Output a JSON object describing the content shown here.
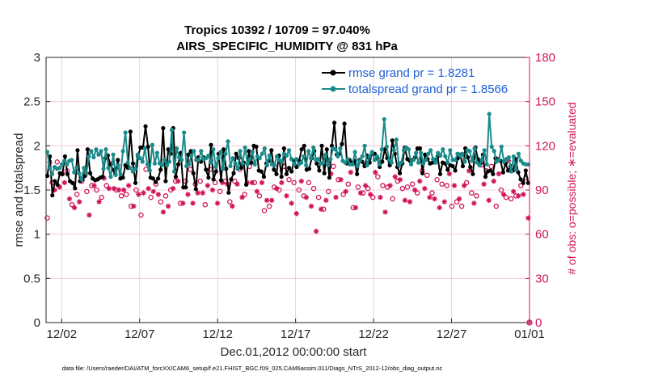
{
  "chart_data": {
    "type": "line",
    "title": "Tropics 10392 / 10709 = 97.040%",
    "subtitle": "AIRS_SPECIFIC_HUMIDITY @ 831 hPa",
    "xlabel": "Dec.01,2012 00:00:00 start",
    "ylabel": "rmse and totalspread",
    "ylabel_right": "# of obs: o=possible; ∗=evaluated",
    "footer": "data file: /Users/raeder/DAI/ATM_forcXX/CAM6_setup/f.e21.FHIST_BGC.f09_025.CAM6assim.011/Diags_NTrS_2012-12/obs_diag_output.nc",
    "xlim": [
      0,
      31
    ],
    "ylim": [
      0,
      3
    ],
    "ylim_right": [
      0,
      180
    ],
    "x_ticks": [
      1,
      6,
      11,
      16,
      21,
      26,
      31
    ],
    "x_tick_labels": [
      "12/02",
      "12/07",
      "12/12",
      "12/17",
      "12/22",
      "12/27",
      "01/01"
    ],
    "y_ticks": [
      0,
      0.5,
      1,
      1.5,
      2,
      2.5,
      3
    ],
    "y_tick_labels": [
      "0",
      "0.5",
      "1",
      "1.5",
      "2",
      "2.5",
      "3"
    ],
    "y_right_ticks": [
      0,
      30,
      60,
      90,
      120,
      150,
      180
    ],
    "y_right_tick_labels": [
      "0",
      "30",
      "60",
      "90",
      "120",
      "150",
      "180"
    ],
    "grid": true,
    "legend_position": "top-right",
    "colors": {
      "rmse": "#000000",
      "spread": "#1a8a8a",
      "obs": "#d0145a",
      "grid": "#f2c4d4",
      "axis": "#262626"
    },
    "series": [
      {
        "name": "rmse grand pr = 1.8281",
        "values": [
          1.66,
          1.88,
          1.44,
          1.6,
          1.56,
          1.69,
          1.68,
          1.88,
          1.68,
          1.6,
          1.58,
          1.52,
          1.95,
          1.6,
          1.62,
          1.66,
          1.96,
          1.69,
          1.63,
          1.61,
          1.62,
          1.64,
          1.65,
          1.86,
          1.89,
          1.79,
          1.73,
          1.68,
          1.84,
          1.63,
          1.64,
          1.78,
          1.75,
          2.16,
          1.8,
          1.58,
          1.88,
          1.98,
          1.98,
          2.22,
          1.99,
          1.64,
          1.63,
          1.59,
          1.63,
          1.73,
          2.2,
          1.6,
          1.96,
          1.91,
          2.2,
          1.65,
          1.79,
          1.92,
          1.53,
          1.53,
          1.9,
          1.94,
          1.69,
          1.51,
          1.87,
          1.82,
          1.87,
          1.73,
          1.64,
          2.01,
          1.62,
          1.71,
          1.91,
          1.61,
          1.96,
          1.74,
          1.47,
          1.62,
          1.69,
          1.91,
          1.86,
          1.75,
          1.81,
          1.56,
          1.94,
          1.81,
          2.0,
          1.99,
          1.72,
          1.71,
          1.65,
          1.8,
          1.83,
          1.95,
          1.73,
          1.68,
          1.89,
          1.65,
          1.97,
          1.68,
          1.75,
          1.71,
          1.83,
          1.76,
          1.83,
          1.96,
          2.0,
          1.73,
          1.74,
          1.86,
          1.94,
          1.8,
          1.72,
          2.0,
          1.69,
          1.96,
          1.64,
          2.0,
          2.26,
          1.9,
          1.91,
          2.02,
          2.25,
          1.8,
          1.84,
          1.81,
          1.83,
          1.68,
          1.84,
          1.82,
          1.77,
          1.89,
          1.81,
          1.92,
          1.91,
          1.86,
          1.76,
          1.82,
          1.96,
          1.86,
          1.78,
          2.06,
          1.91,
          1.76,
          1.69,
          1.8,
          1.98,
          1.85,
          1.83,
          1.84,
          1.87,
          1.97,
          1.97,
          1.69,
          1.9,
          1.85,
          1.8,
          1.81,
          1.84,
          1.88,
          1.68,
          1.81,
          1.8,
          1.73,
          1.78,
          1.77,
          1.72,
          1.86,
          1.9,
          1.77,
          1.97,
          1.87,
          1.76,
          1.68,
          1.98,
          1.85,
          1.8,
          1.9,
          1.65,
          1.71,
          1.72,
          1.68,
          1.86,
          1.85,
          1.83,
          1.7,
          1.8,
          1.72,
          1.77,
          1.72,
          1.85,
          1.7,
          1.62,
          1.58,
          1.72,
          1.58
        ]
      },
      {
        "name": "totalspread grand pr = 1.8566",
        "values": [
          1.93,
          1.75,
          1.68,
          1.76,
          1.74,
          1.75,
          1.79,
          1.83,
          1.79,
          1.83,
          1.84,
          1.7,
          1.75,
          1.69,
          1.62,
          1.75,
          1.69,
          1.88,
          1.94,
          1.87,
          1.96,
          1.9,
          1.94,
          1.74,
          1.96,
          1.75,
          1.65,
          1.9,
          1.67,
          1.78,
          1.68,
          1.94,
          2.15,
          1.81,
          1.75,
          1.71,
          1.74,
          1.9,
          1.86,
          1.82,
          1.97,
          1.79,
          1.72,
          2.01,
          1.8,
          1.92,
          1.8,
          1.78,
          1.84,
          1.78,
          1.82,
          2.18,
          1.71,
          1.97,
          1.87,
          1.84,
          2.15,
          1.77,
          1.79,
          1.89,
          1.94,
          1.84,
          1.84,
          1.94,
          1.85,
          1.86,
          1.89,
          1.81,
          1.96,
          1.76,
          1.86,
          1.93,
          1.74,
          1.91,
          2.05,
          1.77,
          1.86,
          1.8,
          1.74,
          1.94,
          1.8,
          1.98,
          1.79,
          1.85,
          1.93,
          1.79,
          1.88,
          1.86,
          1.91,
          1.97,
          1.78,
          1.89,
          1.79,
          1.78,
          1.88,
          1.84,
          1.82,
          1.91,
          1.89,
          1.95,
          1.85,
          1.79,
          1.85,
          1.79,
          1.81,
          1.88,
          1.78,
          1.94,
          1.86,
          1.98,
          1.84,
          1.85,
          1.8,
          1.81,
          1.9,
          1.78,
          1.85,
          1.97,
          1.96,
          1.88,
          1.97,
          1.83,
          1.81,
          1.85,
          1.79,
          1.79,
          1.93,
          1.77,
          1.83,
          1.88,
          2.0,
          1.78,
          1.88,
          1.93,
          1.84,
          1.88,
          1.79,
          1.96,
          2.3,
          1.99,
          1.84,
          1.81,
          1.95,
          2.07,
          1.78,
          1.81,
          1.95,
          1.98,
          1.96,
          1.79,
          1.84,
          1.92,
          1.81,
          1.92,
          1.8,
          1.84,
          1.91,
          1.95,
          1.85,
          1.81,
          1.92,
          1.89,
          1.96,
          1.88,
          1.81,
          1.95,
          1.84,
          1.84,
          1.91,
          1.89,
          1.91,
          1.82,
          1.95,
          1.94,
          1.83,
          1.97,
          1.81,
          1.78,
          1.84,
          1.95,
          1.79,
          2.36,
          1.99,
          1.94,
          1.82,
          1.84,
          1.99,
          1.82,
          1.85,
          1.87,
          1.71,
          1.88,
          1.73,
          1.91,
          1.83,
          1.8,
          1.79,
          1.79
        ]
      }
    ],
    "obs_possible": [
      71,
      110,
      95,
      91,
      109,
      93,
      101,
      96,
      103,
      85,
      80,
      79,
      87,
      83,
      96,
      102,
      89,
      74,
      93,
      94,
      90,
      83,
      85,
      99,
      93,
      92,
      108,
      92,
      90,
      91,
      86,
      91,
      87,
      94,
      79,
      80,
      90,
      88,
      73,
      89,
      104,
      92,
      85,
      90,
      94,
      88,
      82,
      76,
      86,
      80,
      90,
      92,
      96,
      97,
      81,
      82,
      96,
      88,
      104,
      82,
      94,
      89,
      96,
      89,
      80,
      94,
      104,
      91,
      95,
      82,
      89,
      96,
      96,
      95,
      82,
      80,
      96,
      95,
      104,
      86,
      87,
      96,
      106,
      96,
      95,
      90,
      86,
      96,
      76,
      84,
      79,
      84,
      92,
      92,
      90,
      96,
      106,
      87,
      97,
      82,
      95,
      75,
      90,
      97,
      86,
      86,
      95,
      80,
      91,
      66,
      85,
      78,
      77,
      84,
      89,
      102,
      106,
      86,
      97,
      98,
      87,
      90,
      94,
      103,
      78,
      79,
      92,
      89,
      88,
      94,
      91,
      88,
      85,
      103,
      99,
      86,
      93,
      76,
      92,
      94,
      84,
      100,
      96,
      98,
      91,
      84,
      92,
      83,
      94,
      91,
      88,
      97,
      103,
      92,
      100,
      86,
      88,
      85,
      97,
      79,
      94,
      83,
      93,
      102,
      79,
      94,
      82,
      85,
      79,
      94,
      95,
      104,
      88,
      82,
      86,
      110,
      107,
      95,
      103,
      84,
      106,
      97,
      79,
      102,
      90,
      88,
      85,
      111,
      84,
      90,
      86,
      87,
      93,
      88,
      98,
      72
    ],
    "obs_evaluated": [
      70,
      109,
      94,
      90,
      108,
      92,
      100,
      95,
      102,
      84,
      79,
      78,
      86,
      82,
      95,
      101,
      88,
      73,
      92,
      93,
      89,
      82,
      84,
      98,
      92,
      91,
      107,
      91,
      89,
      90,
      85,
      90,
      86,
      93,
      78,
      79,
      89,
      87,
      72,
      88,
      103,
      91,
      84,
      89,
      93,
      87,
      81,
      75,
      85,
      79,
      89,
      91,
      95,
      96,
      80,
      81,
      95,
      87,
      103,
      81,
      93,
      88,
      95,
      88,
      79,
      93,
      103,
      90,
      94,
      81,
      88,
      95,
      95,
      94,
      81,
      79,
      95,
      94,
      103,
      85,
      86,
      95,
      105,
      95,
      94,
      89,
      85,
      95,
      75,
      83,
      78,
      83,
      91,
      91,
      89,
      95,
      105,
      86,
      96,
      81,
      94,
      74,
      89,
      96,
      85,
      85,
      94,
      79,
      90,
      62,
      84,
      77,
      76,
      83,
      88,
      101,
      105,
      85,
      96,
      97,
      86,
      89,
      93,
      102,
      77,
      78,
      91,
      88,
      87,
      93,
      90,
      87,
      84,
      102,
      98,
      85,
      92,
      75,
      91,
      93,
      83,
      99,
      95,
      97,
      90,
      83,
      91,
      82,
      93,
      90,
      87,
      96,
      102,
      91,
      99,
      85,
      87,
      84,
      96,
      78,
      93,
      82,
      92,
      101,
      78,
      93,
      81,
      84,
      78,
      93,
      94,
      103,
      87,
      81,
      85,
      109,
      106,
      94,
      102,
      83,
      105,
      96,
      78,
      101,
      89,
      87,
      84,
      110,
      83,
      89,
      85,
      86,
      92,
      87,
      97,
      71
    ]
  }
}
